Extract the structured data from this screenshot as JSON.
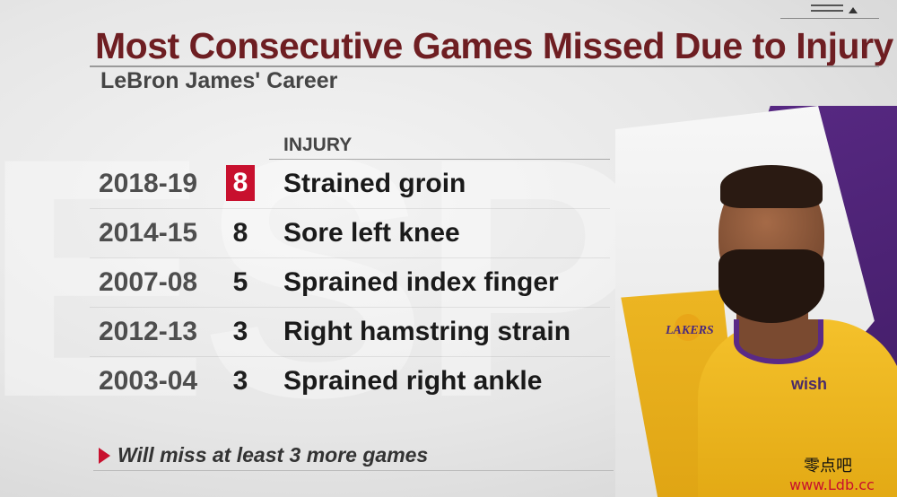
{
  "title": "Most Consecutive Games Missed Due to Injury",
  "subtitle": "LeBron James' Career",
  "column_header": "INJURY",
  "rows": [
    {
      "season": "2018-19",
      "games": "8",
      "injury": "Strained groin",
      "highlight": true
    },
    {
      "season": "2014-15",
      "games": "8",
      "injury": "Sore left knee",
      "highlight": false
    },
    {
      "season": "2007-08",
      "games": "5",
      "injury": "Sprained index finger",
      "highlight": false
    },
    {
      "season": "2012-13",
      "games": "3",
      "injury": "Right hamstring strain",
      "highlight": false
    },
    {
      "season": "2003-04",
      "games": "3",
      "injury": "Sprained right ankle",
      "highlight": false
    }
  ],
  "note": "Will miss at least 3 more games",
  "jersey_text": "wish",
  "team_logo": "LAKERS",
  "watermark": {
    "line1": "零点吧",
    "line2": "www.Ldb.cc"
  },
  "colors": {
    "title": "#6e1e22",
    "highlight": "#c8102e",
    "lakers_purple": "#5a2a86",
    "lakers_gold": "#f4c12b"
  },
  "icons": {
    "note_marker": "play-arrow-icon"
  }
}
